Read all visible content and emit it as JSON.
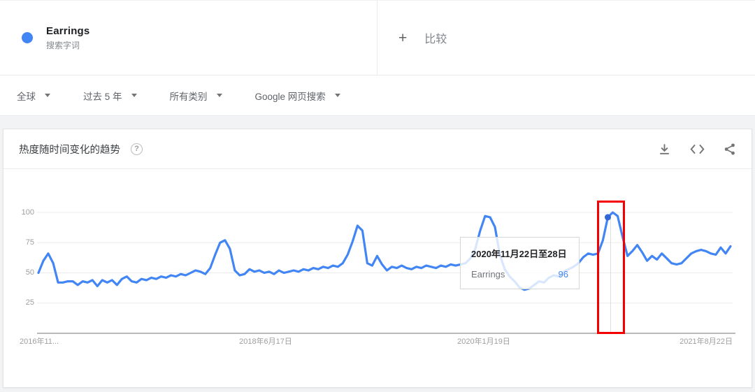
{
  "term_card": {
    "term": "Earrings",
    "type_label": "搜索字词",
    "dot_color": "#4285f4"
  },
  "compare_card": {
    "plus": "+",
    "label": "比较"
  },
  "filters": [
    {
      "label": "全球"
    },
    {
      "label": "过去 5 年"
    },
    {
      "label": "所有类别"
    },
    {
      "label": "Google 网页搜索"
    }
  ],
  "trend_card": {
    "title": "热度随时间变化的趋势",
    "help_glyph": "?",
    "toolbar_icons": [
      "download-icon",
      "embed-icon",
      "share-icon"
    ]
  },
  "tooltip": {
    "date_range": "2020年11月22日至28日",
    "term": "Earrings",
    "value": "96"
  },
  "chart_data": {
    "type": "line",
    "title": "热度随时间变化的趋势",
    "xlabel": "",
    "ylabel": "",
    "x_axis": {
      "tick_labels": [
        "2016年11...",
        "2018年6月17日",
        "2020年1月19日",
        "2021年8月22日"
      ]
    },
    "y_axis": {
      "ticks": [
        25,
        50,
        75,
        100
      ],
      "range": [
        0,
        100
      ]
    },
    "grid": true,
    "legend": "none",
    "series": [
      {
        "name": "Earrings",
        "color": "#4285f4",
        "values": [
          50,
          60,
          66,
          58,
          42,
          42,
          43,
          43,
          40,
          43,
          42,
          44,
          39,
          44,
          42,
          44,
          40,
          45,
          47,
          43,
          42,
          45,
          44,
          46,
          45,
          47,
          46,
          48,
          47,
          49,
          48,
          50,
          52,
          51,
          49,
          54,
          65,
          75,
          77,
          70,
          52,
          48,
          49,
          53,
          51,
          52,
          50,
          51,
          49,
          52,
          50,
          51,
          52,
          51,
          53,
          52,
          54,
          53,
          55,
          54,
          56,
          55,
          58,
          65,
          76,
          89,
          85,
          58,
          56,
          64,
          57,
          52,
          55,
          54,
          56,
          54,
          53,
          55,
          54,
          56,
          55,
          54,
          56,
          55,
          57,
          56,
          57,
          58,
          62,
          70,
          85,
          97,
          96,
          88,
          65,
          53,
          47,
          43,
          38,
          36,
          37,
          40,
          43,
          42,
          46,
          48,
          47,
          51,
          53,
          55,
          58,
          63,
          66,
          65,
          66,
          77,
          96,
          100,
          97,
          80,
          64,
          68,
          73,
          67,
          60,
          64,
          61,
          66,
          62,
          58,
          57,
          58,
          62,
          66,
          68,
          69,
          68,
          66,
          65,
          71,
          66,
          72
        ]
      }
    ],
    "highlight": {
      "hovered_point_index": 116,
      "hovered_value": 96,
      "hovered_date": "2020年11月22日至28日",
      "marker_color": "#3367d6",
      "hover_line_color": "#dadce0",
      "red_box_color": "#f50000"
    },
    "colors": {
      "grid": "#ebebeb",
      "axis": "#8f8f8f",
      "tick_text": "#9e9e9e"
    }
  }
}
